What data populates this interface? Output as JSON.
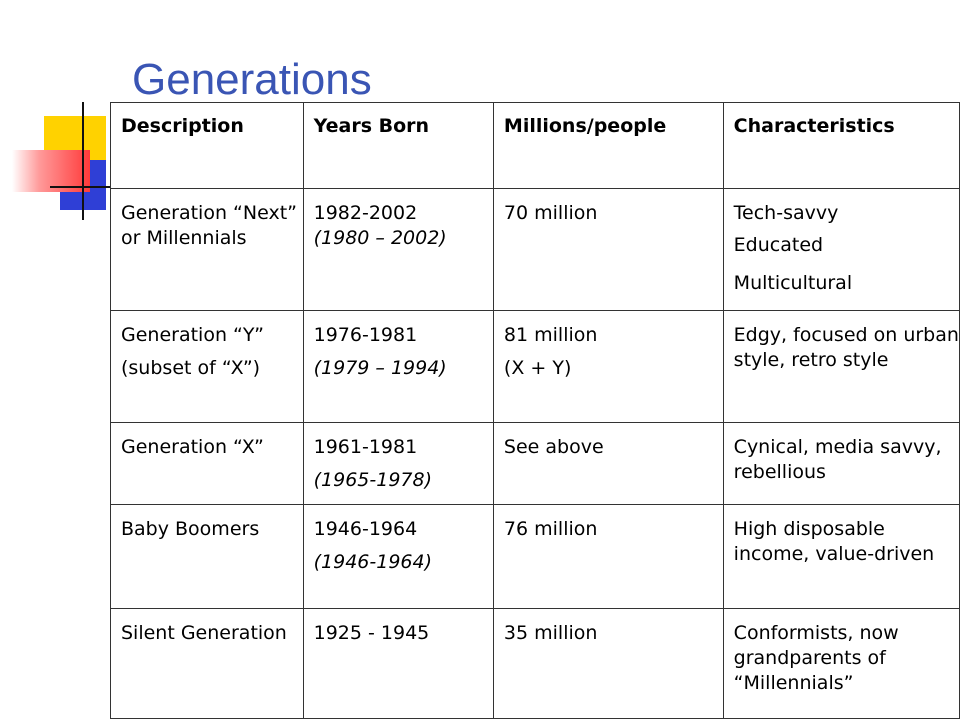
{
  "title": "Generations",
  "headers": [
    "Description",
    "Years Born",
    "Millions/people",
    "Characteristics"
  ],
  "rows": [
    {
      "description": [
        "Generation “Next” or Millennials"
      ],
      "years": "1982-2002",
      "years_alt": "(1980 – 2002)",
      "millions": [
        "70 million"
      ],
      "characteristics": [
        "Tech-savvy",
        "Educated",
        "Multicultural"
      ]
    },
    {
      "description": [
        "Generation “Y”",
        "(subset of “X”)"
      ],
      "years": "1976-1981",
      "years_alt": "(1979 – 1994)",
      "millions": [
        "81 million",
        "(X + Y)"
      ],
      "characteristics": [
        "Edgy, focused on urban style, retro style"
      ]
    },
    {
      "description": [
        "Generation “X”"
      ],
      "years": "1961-1981",
      "years_alt": "(1965-1978)",
      "millions": [
        "See above"
      ],
      "characteristics": [
        "Cynical, media savvy, rebellious"
      ]
    },
    {
      "description": [
        "Baby Boomers"
      ],
      "years": "1946-1964",
      "years_alt": "(1946-1964)",
      "millions": [
        "76 million"
      ],
      "characteristics": [
        "High disposable income, value-driven"
      ]
    },
    {
      "description": [
        "Silent Generation"
      ],
      "years": "1925 - 1945",
      "years_alt": "",
      "millions": [
        "35 million"
      ],
      "characteristics": [
        "Conformists, now grandparents of “Millennials”"
      ]
    }
  ]
}
